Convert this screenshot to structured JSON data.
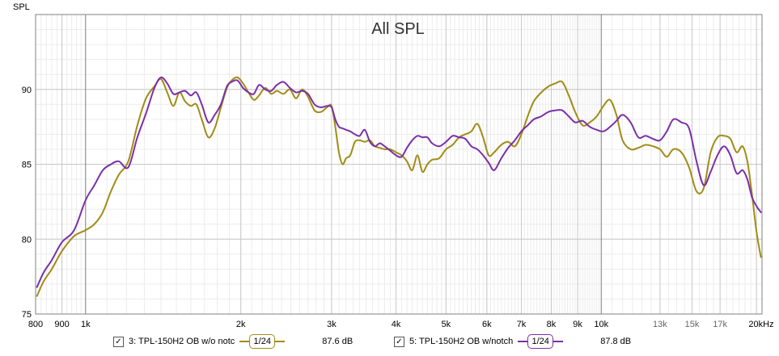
{
  "chart_data": {
    "type": "line",
    "title": "All SPL",
    "ylabel": "SPL",
    "xlabel": "",
    "x_scale": "log",
    "xlim": [
      800,
      20500
    ],
    "ylim": [
      75,
      95
    ],
    "y_ticks": [
      75,
      80,
      85,
      90
    ],
    "x_ticks": [
      {
        "value": 800,
        "label": "800"
      },
      {
        "value": 900,
        "label": "900"
      },
      {
        "value": 1000,
        "label": "1k"
      },
      {
        "value": 2000,
        "label": "2k"
      },
      {
        "value": 3000,
        "label": "3k"
      },
      {
        "value": 4000,
        "label": "4k"
      },
      {
        "value": 5000,
        "label": "5k"
      },
      {
        "value": 6000,
        "label": "6k"
      },
      {
        "value": 7000,
        "label": "7k"
      },
      {
        "value": 8000,
        "label": "8k"
      },
      {
        "value": 9000,
        "label": "9k"
      },
      {
        "value": 10000,
        "label": "10k"
      },
      {
        "value": 13000,
        "label": "13k"
      },
      {
        "value": 15000,
        "label": "15k"
      },
      {
        "value": 17000,
        "label": "17k"
      },
      {
        "value": 20000,
        "label": "20kHz"
      }
    ],
    "grid": true,
    "series": [
      {
        "name": "3: TPL-150H2 OB w/o notc",
        "color": "#a08c14",
        "points": [
          [
            805,
            76.2
          ],
          [
            830,
            77.2
          ],
          [
            860,
            78.0
          ],
          [
            900,
            79.2
          ],
          [
            950,
            80.2
          ],
          [
            1000,
            80.6
          ],
          [
            1040,
            81.0
          ],
          [
            1080,
            81.8
          ],
          [
            1120,
            83.2
          ],
          [
            1160,
            84.3
          ],
          [
            1210,
            85.2
          ],
          [
            1260,
            87.6
          ],
          [
            1310,
            89.4
          ],
          [
            1360,
            90.2
          ],
          [
            1400,
            90.7
          ],
          [
            1440,
            89.8
          ],
          [
            1480,
            88.9
          ],
          [
            1520,
            89.8
          ],
          [
            1560,
            89.2
          ],
          [
            1600,
            88.9
          ],
          [
            1640,
            89.0
          ],
          [
            1680,
            88.0
          ],
          [
            1730,
            86.8
          ],
          [
            1780,
            87.4
          ],
          [
            1830,
            88.8
          ],
          [
            1880,
            90.1
          ],
          [
            1920,
            90.6
          ],
          [
            1970,
            90.8
          ],
          [
            2020,
            90.4
          ],
          [
            2070,
            89.8
          ],
          [
            2120,
            89.3
          ],
          [
            2170,
            89.6
          ],
          [
            2230,
            90.1
          ],
          [
            2290,
            89.7
          ],
          [
            2350,
            89.9
          ],
          [
            2420,
            89.7
          ],
          [
            2490,
            90.0
          ],
          [
            2560,
            89.4
          ],
          [
            2630,
            90.0
          ],
          [
            2700,
            89.5
          ],
          [
            2780,
            88.6
          ],
          [
            2860,
            88.5
          ],
          [
            2940,
            88.8
          ],
          [
            3000,
            88.9
          ],
          [
            3050,
            87.5
          ],
          [
            3100,
            85.8
          ],
          [
            3150,
            85.0
          ],
          [
            3200,
            85.4
          ],
          [
            3260,
            85.6
          ],
          [
            3330,
            86.5
          ],
          [
            3400,
            86.6
          ],
          [
            3480,
            86.5
          ],
          [
            3560,
            86.6
          ],
          [
            3640,
            86.2
          ],
          [
            3720,
            86.1
          ],
          [
            3800,
            86.0
          ],
          [
            3900,
            86.0
          ],
          [
            4000,
            85.8
          ],
          [
            4100,
            85.6
          ],
          [
            4200,
            85.2
          ],
          [
            4300,
            84.6
          ],
          [
            4400,
            85.6
          ],
          [
            4500,
            84.5
          ],
          [
            4600,
            85.0
          ],
          [
            4700,
            85.3
          ],
          [
            4850,
            85.4
          ],
          [
            5000,
            86.0
          ],
          [
            5150,
            86.3
          ],
          [
            5300,
            86.8
          ],
          [
            5450,
            87.0
          ],
          [
            5600,
            87.2
          ],
          [
            5750,
            87.7
          ],
          [
            5900,
            86.8
          ],
          [
            6050,
            85.6
          ],
          [
            6200,
            85.8
          ],
          [
            6400,
            86.3
          ],
          [
            6600,
            86.5
          ],
          [
            6800,
            86.2
          ],
          [
            7000,
            87.0
          ],
          [
            7200,
            88.2
          ],
          [
            7400,
            89.2
          ],
          [
            7650,
            89.8
          ],
          [
            7900,
            90.2
          ],
          [
            8150,
            90.4
          ],
          [
            8400,
            90.5
          ],
          [
            8650,
            89.6
          ],
          [
            8900,
            88.5
          ],
          [
            9200,
            87.6
          ],
          [
            9500,
            87.8
          ],
          [
            9800,
            88.2
          ],
          [
            10100,
            88.9
          ],
          [
            10400,
            89.3
          ],
          [
            10700,
            88.3
          ],
          [
            11000,
            86.6
          ],
          [
            11400,
            86.0
          ],
          [
            11800,
            86.1
          ],
          [
            12200,
            86.3
          ],
          [
            12600,
            86.2
          ],
          [
            13000,
            86.0
          ],
          [
            13400,
            85.5
          ],
          [
            13800,
            86.0
          ],
          [
            14300,
            85.8
          ],
          [
            14800,
            84.8
          ],
          [
            15300,
            83.2
          ],
          [
            15800,
            83.4
          ],
          [
            16300,
            85.8
          ],
          [
            16800,
            86.8
          ],
          [
            17300,
            86.9
          ],
          [
            17800,
            86.7
          ],
          [
            18300,
            85.8
          ],
          [
            18800,
            86.2
          ],
          [
            19200,
            85.2
          ],
          [
            19600,
            83.0
          ],
          [
            20000,
            80.5
          ],
          [
            20400,
            78.8
          ]
        ]
      },
      {
        "name": "5: TPL-150H2 OB w/notch",
        "color": "#7b2fa8",
        "points": [
          [
            805,
            76.8
          ],
          [
            830,
            77.8
          ],
          [
            860,
            78.6
          ],
          [
            900,
            79.8
          ],
          [
            950,
            80.6
          ],
          [
            1000,
            82.6
          ],
          [
            1040,
            83.6
          ],
          [
            1080,
            84.6
          ],
          [
            1120,
            85.0
          ],
          [
            1160,
            85.2
          ],
          [
            1210,
            84.8
          ],
          [
            1260,
            86.8
          ],
          [
            1310,
            88.4
          ],
          [
            1360,
            90.1
          ],
          [
            1400,
            90.8
          ],
          [
            1440,
            90.4
          ],
          [
            1480,
            89.7
          ],
          [
            1520,
            89.8
          ],
          [
            1560,
            89.9
          ],
          [
            1600,
            89.6
          ],
          [
            1640,
            89.8
          ],
          [
            1680,
            89.0
          ],
          [
            1730,
            87.8
          ],
          [
            1780,
            88.3
          ],
          [
            1830,
            89.0
          ],
          [
            1880,
            90.2
          ],
          [
            1920,
            90.5
          ],
          [
            1970,
            90.6
          ],
          [
            2020,
            90.1
          ],
          [
            2070,
            89.8
          ],
          [
            2120,
            89.7
          ],
          [
            2170,
            90.3
          ],
          [
            2230,
            90.0
          ],
          [
            2290,
            89.9
          ],
          [
            2350,
            90.3
          ],
          [
            2420,
            90.5
          ],
          [
            2490,
            90.1
          ],
          [
            2560,
            89.8
          ],
          [
            2630,
            89.9
          ],
          [
            2700,
            89.7
          ],
          [
            2780,
            89.0
          ],
          [
            2860,
            88.8
          ],
          [
            2940,
            88.9
          ],
          [
            3000,
            88.8
          ],
          [
            3050,
            88.0
          ],
          [
            3100,
            87.5
          ],
          [
            3150,
            87.4
          ],
          [
            3200,
            87.3
          ],
          [
            3260,
            87.2
          ],
          [
            3330,
            87.0
          ],
          [
            3400,
            86.9
          ],
          [
            3480,
            87.3
          ],
          [
            3560,
            86.5
          ],
          [
            3640,
            86.2
          ],
          [
            3720,
            86.4
          ],
          [
            3800,
            86.2
          ],
          [
            3900,
            85.9
          ],
          [
            4000,
            85.6
          ],
          [
            4100,
            85.5
          ],
          [
            4200,
            86.1
          ],
          [
            4300,
            86.6
          ],
          [
            4400,
            86.9
          ],
          [
            4500,
            86.8
          ],
          [
            4600,
            86.8
          ],
          [
            4700,
            86.4
          ],
          [
            4850,
            86.2
          ],
          [
            5000,
            86.5
          ],
          [
            5150,
            86.9
          ],
          [
            5300,
            86.8
          ],
          [
            5450,
            86.7
          ],
          [
            5600,
            86.2
          ],
          [
            5750,
            86.0
          ],
          [
            5900,
            85.6
          ],
          [
            6050,
            85.1
          ],
          [
            6200,
            84.6
          ],
          [
            6400,
            85.4
          ],
          [
            6600,
            86.1
          ],
          [
            6800,
            86.6
          ],
          [
            7000,
            87.2
          ],
          [
            7200,
            87.6
          ],
          [
            7400,
            88.0
          ],
          [
            7650,
            88.2
          ],
          [
            7900,
            88.5
          ],
          [
            8150,
            88.6
          ],
          [
            8400,
            88.6
          ],
          [
            8650,
            88.2
          ],
          [
            8900,
            87.8
          ],
          [
            9200,
            87.9
          ],
          [
            9500,
            87.5
          ],
          [
            9800,
            87.3
          ],
          [
            10100,
            87.2
          ],
          [
            10400,
            87.5
          ],
          [
            10700,
            87.9
          ],
          [
            11000,
            88.3
          ],
          [
            11400,
            87.8
          ],
          [
            11800,
            86.8
          ],
          [
            12200,
            86.9
          ],
          [
            12600,
            86.7
          ],
          [
            13000,
            86.6
          ],
          [
            13400,
            87.2
          ],
          [
            13800,
            88.0
          ],
          [
            14300,
            87.8
          ],
          [
            14800,
            87.4
          ],
          [
            15300,
            85.2
          ],
          [
            15800,
            83.6
          ],
          [
            16300,
            84.5
          ],
          [
            16800,
            85.6
          ],
          [
            17300,
            86.2
          ],
          [
            17800,
            85.6
          ],
          [
            18300,
            84.4
          ],
          [
            18800,
            84.6
          ],
          [
            19200,
            84.0
          ],
          [
            19600,
            82.8
          ],
          [
            20000,
            82.2
          ],
          [
            20400,
            81.8
          ]
        ]
      }
    ]
  },
  "legend": [
    {
      "checked": "✓",
      "label": "3: TPL-150H2 OB w/o notc",
      "smoothing": "1/24",
      "level": "87.6 dB",
      "color": "#a08c14"
    },
    {
      "checked": "✓",
      "label": "5: TPL-150H2 OB w/notch",
      "smoothing": "1/24",
      "level": "87.8 dB",
      "color": "#7b2fa8"
    }
  ]
}
